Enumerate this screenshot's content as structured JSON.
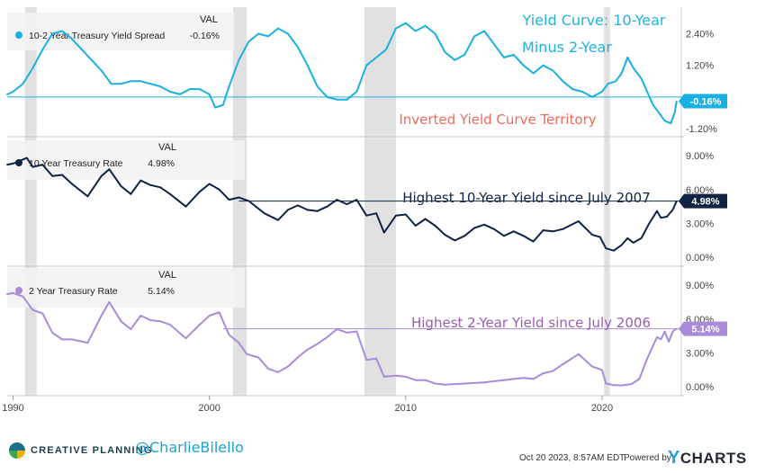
{
  "chart_data": {
    "type": "line",
    "x_range": [
      1989.7,
      2023.9
    ],
    "x_ticks": [
      "1990",
      "2000",
      "2010",
      "2020"
    ],
    "recessions": [
      [
        1990.6,
        1991.2
      ],
      [
        2001.2,
        2001.9
      ],
      [
        2007.9,
        2009.5
      ],
      [
        2020.1,
        2020.4
      ]
    ],
    "panels": [
      {
        "id": "spread",
        "legend_label": "10-2 Year Treasury Yield Spread",
        "legend_header": "VAL",
        "legend_value": "-0.16%",
        "color": "#1ab0e0",
        "ylim": [
          -1.3,
          3.2
        ],
        "y_ticks": [
          "2.40%",
          "1.20%",
          "0.00%",
          "-1.20%"
        ],
        "y_tick_values": [
          2.4,
          1.2,
          0.0,
          -1.2
        ],
        "last_value_badge": "-0.16%",
        "title_annotation": "Yield Curve: 10-Year",
        "title_annotation_2": "Minus 2-Year",
        "annotation": "Inverted Yield Curve Territory",
        "annotation_color": "#f06a5a",
        "reference_line": 0.0,
        "series": [
          {
            "x": 1989.7,
            "y": 0.1
          },
          {
            "x": 1990.0,
            "y": 0.2
          },
          {
            "x": 1990.5,
            "y": 0.5
          },
          {
            "x": 1991.0,
            "y": 1.1
          },
          {
            "x": 1991.5,
            "y": 1.8
          },
          {
            "x": 1992.0,
            "y": 2.4
          },
          {
            "x": 1992.5,
            "y": 2.5
          },
          {
            "x": 1993.0,
            "y": 2.2
          },
          {
            "x": 1993.5,
            "y": 1.8
          },
          {
            "x": 1994.0,
            "y": 1.4
          },
          {
            "x": 1994.5,
            "y": 1.0
          },
          {
            "x": 1995.0,
            "y": 0.5
          },
          {
            "x": 1995.5,
            "y": 0.5
          },
          {
            "x": 1996.0,
            "y": 0.6
          },
          {
            "x": 1996.5,
            "y": 0.6
          },
          {
            "x": 1997.0,
            "y": 0.5
          },
          {
            "x": 1997.5,
            "y": 0.4
          },
          {
            "x": 1998.0,
            "y": 0.2
          },
          {
            "x": 1998.5,
            "y": 0.1
          },
          {
            "x": 1999.0,
            "y": 0.3
          },
          {
            "x": 1999.5,
            "y": 0.3
          },
          {
            "x": 2000.0,
            "y": 0.1
          },
          {
            "x": 2000.3,
            "y": -0.4
          },
          {
            "x": 2000.7,
            "y": -0.3
          },
          {
            "x": 2001.0,
            "y": 0.4
          },
          {
            "x": 2001.5,
            "y": 1.4
          },
          {
            "x": 2002.0,
            "y": 2.1
          },
          {
            "x": 2002.5,
            "y": 2.4
          },
          {
            "x": 2003.0,
            "y": 2.3
          },
          {
            "x": 2003.5,
            "y": 2.6
          },
          {
            "x": 2004.0,
            "y": 2.4
          },
          {
            "x": 2004.5,
            "y": 1.9
          },
          {
            "x": 2005.0,
            "y": 1.2
          },
          {
            "x": 2005.5,
            "y": 0.4
          },
          {
            "x": 2006.0,
            "y": 0.0
          },
          {
            "x": 2006.5,
            "y": -0.1
          },
          {
            "x": 2007.0,
            "y": -0.1
          },
          {
            "x": 2007.5,
            "y": 0.2
          },
          {
            "x": 2008.0,
            "y": 1.2
          },
          {
            "x": 2008.5,
            "y": 1.5
          },
          {
            "x": 2009.0,
            "y": 1.8
          },
          {
            "x": 2009.5,
            "y": 2.6
          },
          {
            "x": 2010.0,
            "y": 2.8
          },
          {
            "x": 2010.5,
            "y": 2.5
          },
          {
            "x": 2011.0,
            "y": 2.7
          },
          {
            "x": 2011.5,
            "y": 2.4
          },
          {
            "x": 2012.0,
            "y": 1.7
          },
          {
            "x": 2012.5,
            "y": 1.4
          },
          {
            "x": 2013.0,
            "y": 1.6
          },
          {
            "x": 2013.5,
            "y": 2.3
          },
          {
            "x": 2014.0,
            "y": 2.5
          },
          {
            "x": 2014.5,
            "y": 2.0
          },
          {
            "x": 2015.0,
            "y": 1.5
          },
          {
            "x": 2015.5,
            "y": 1.6
          },
          {
            "x": 2016.0,
            "y": 1.2
          },
          {
            "x": 2016.5,
            "y": 0.9
          },
          {
            "x": 2017.0,
            "y": 1.2
          },
          {
            "x": 2017.5,
            "y": 1.0
          },
          {
            "x": 2018.0,
            "y": 0.6
          },
          {
            "x": 2018.5,
            "y": 0.3
          },
          {
            "x": 2019.0,
            "y": 0.2
          },
          {
            "x": 2019.5,
            "y": 0.0
          },
          {
            "x": 2020.0,
            "y": 0.2
          },
          {
            "x": 2020.3,
            "y": 0.5
          },
          {
            "x": 2020.7,
            "y": 0.6
          },
          {
            "x": 2021.0,
            "y": 0.9
          },
          {
            "x": 2021.3,
            "y": 1.5
          },
          {
            "x": 2021.6,
            "y": 1.1
          },
          {
            "x": 2022.0,
            "y": 0.7
          },
          {
            "x": 2022.3,
            "y": 0.2
          },
          {
            "x": 2022.6,
            "y": -0.3
          },
          {
            "x": 2022.9,
            "y": -0.6
          },
          {
            "x": 2023.2,
            "y": -0.9
          },
          {
            "x": 2023.5,
            "y": -1.0
          },
          {
            "x": 2023.7,
            "y": -0.6
          },
          {
            "x": 2023.8,
            "y": -0.16
          }
        ]
      },
      {
        "id": "ten_year",
        "legend_label": "10 Year Treasury Rate",
        "legend_header": "VAL",
        "legend_value": "4.98%",
        "color": "#0f2444",
        "ylim": [
          -0.3,
          10.2
        ],
        "y_ticks": [
          "9.00%",
          "6.00%",
          "3.00%",
          "0.00%"
        ],
        "y_tick_values": [
          9,
          6,
          3,
          0
        ],
        "last_value_badge": "4.98%",
        "annotation": "Highest 10-Year Yield since July 2007",
        "annotation_color": "#0f2444",
        "reference_line": 4.98,
        "reference_from": 2001.5,
        "series": [
          {
            "x": 1989.7,
            "y": 8.2
          },
          {
            "x": 1990.0,
            "y": 8.3
          },
          {
            "x": 1990.7,
            "y": 8.8
          },
          {
            "x": 1991.0,
            "y": 8.0
          },
          {
            "x": 1991.5,
            "y": 8.2
          },
          {
            "x": 1992.0,
            "y": 7.2
          },
          {
            "x": 1992.5,
            "y": 7.3
          },
          {
            "x": 1993.0,
            "y": 6.5
          },
          {
            "x": 1993.8,
            "y": 5.4
          },
          {
            "x": 1994.5,
            "y": 7.2
          },
          {
            "x": 1994.9,
            "y": 7.8
          },
          {
            "x": 1995.5,
            "y": 6.3
          },
          {
            "x": 1996.0,
            "y": 5.6
          },
          {
            "x": 1996.5,
            "y": 6.8
          },
          {
            "x": 1997.0,
            "y": 6.4
          },
          {
            "x": 1997.5,
            "y": 6.2
          },
          {
            "x": 1998.0,
            "y": 5.6
          },
          {
            "x": 1998.8,
            "y": 4.5
          },
          {
            "x": 1999.5,
            "y": 5.8
          },
          {
            "x": 2000.0,
            "y": 6.5
          },
          {
            "x": 2000.5,
            "y": 6.0
          },
          {
            "x": 2001.0,
            "y": 5.1
          },
          {
            "x": 2001.5,
            "y": 5.3
          },
          {
            "x": 2002.0,
            "y": 5.0
          },
          {
            "x": 2002.8,
            "y": 3.9
          },
          {
            "x": 2003.5,
            "y": 3.3
          },
          {
            "x": 2004.0,
            "y": 4.2
          },
          {
            "x": 2004.5,
            "y": 4.6
          },
          {
            "x": 2005.0,
            "y": 4.2
          },
          {
            "x": 2005.5,
            "y": 4.1
          },
          {
            "x": 2006.0,
            "y": 4.5
          },
          {
            "x": 2006.5,
            "y": 5.1
          },
          {
            "x": 2007.0,
            "y": 4.7
          },
          {
            "x": 2007.5,
            "y": 5.1
          },
          {
            "x": 2008.0,
            "y": 3.7
          },
          {
            "x": 2008.5,
            "y": 3.9
          },
          {
            "x": 2008.9,
            "y": 2.2
          },
          {
            "x": 2009.5,
            "y": 3.7
          },
          {
            "x": 2010.0,
            "y": 3.8
          },
          {
            "x": 2010.5,
            "y": 2.8
          },
          {
            "x": 2011.0,
            "y": 3.4
          },
          {
            "x": 2011.5,
            "y": 2.8
          },
          {
            "x": 2012.0,
            "y": 2.0
          },
          {
            "x": 2012.5,
            "y": 1.5
          },
          {
            "x": 2013.0,
            "y": 1.9
          },
          {
            "x": 2013.5,
            "y": 2.6
          },
          {
            "x": 2014.0,
            "y": 2.9
          },
          {
            "x": 2014.5,
            "y": 2.5
          },
          {
            "x": 2015.0,
            "y": 1.9
          },
          {
            "x": 2015.5,
            "y": 2.3
          },
          {
            "x": 2016.0,
            "y": 1.9
          },
          {
            "x": 2016.5,
            "y": 1.4
          },
          {
            "x": 2017.0,
            "y": 2.4
          },
          {
            "x": 2017.5,
            "y": 2.3
          },
          {
            "x": 2018.0,
            "y": 2.5
          },
          {
            "x": 2018.8,
            "y": 3.2
          },
          {
            "x": 2019.5,
            "y": 2.0
          },
          {
            "x": 2019.9,
            "y": 1.8
          },
          {
            "x": 2020.2,
            "y": 0.8
          },
          {
            "x": 2020.6,
            "y": 0.6
          },
          {
            "x": 2021.0,
            "y": 1.1
          },
          {
            "x": 2021.3,
            "y": 1.7
          },
          {
            "x": 2021.6,
            "y": 1.3
          },
          {
            "x": 2022.0,
            "y": 1.7
          },
          {
            "x": 2022.4,
            "y": 3.0
          },
          {
            "x": 2022.8,
            "y": 4.1
          },
          {
            "x": 2023.0,
            "y": 3.5
          },
          {
            "x": 2023.3,
            "y": 3.6
          },
          {
            "x": 2023.6,
            "y": 4.2
          },
          {
            "x": 2023.8,
            "y": 4.98
          }
        ]
      },
      {
        "id": "two_year",
        "legend_label": "2 Year Treasury Rate",
        "legend_header": "VAL",
        "legend_value": "5.14%",
        "color": "#a98bd9",
        "ylim": [
          -0.3,
          10.2
        ],
        "y_ticks": [
          "9.00%",
          "6.00%",
          "3.00%",
          "0.00%"
        ],
        "y_tick_values": [
          9,
          6,
          3,
          0
        ],
        "last_value_badge": "5.14%",
        "annotation": "Highest 2-Year Yield since July 2006",
        "annotation_color": "#9b5db0",
        "reference_line": 5.14,
        "reference_from": 2000.7,
        "series": [
          {
            "x": 1989.7,
            "y": 8.2
          },
          {
            "x": 1990.0,
            "y": 8.3
          },
          {
            "x": 1990.5,
            "y": 8.0
          },
          {
            "x": 1991.0,
            "y": 6.8
          },
          {
            "x": 1991.5,
            "y": 6.5
          },
          {
            "x": 1992.0,
            "y": 4.8
          },
          {
            "x": 1992.5,
            "y": 4.2
          },
          {
            "x": 1993.0,
            "y": 4.2
          },
          {
            "x": 1993.8,
            "y": 3.9
          },
          {
            "x": 1994.5,
            "y": 6.3
          },
          {
            "x": 1994.9,
            "y": 7.5
          },
          {
            "x": 1995.5,
            "y": 5.8
          },
          {
            "x": 1996.0,
            "y": 5.1
          },
          {
            "x": 1996.5,
            "y": 6.3
          },
          {
            "x": 1997.0,
            "y": 5.9
          },
          {
            "x": 1997.5,
            "y": 5.8
          },
          {
            "x": 1998.0,
            "y": 5.5
          },
          {
            "x": 1998.8,
            "y": 4.3
          },
          {
            "x": 1999.5,
            "y": 5.5
          },
          {
            "x": 2000.0,
            "y": 6.3
          },
          {
            "x": 2000.5,
            "y": 6.6
          },
          {
            "x": 2001.0,
            "y": 4.6
          },
          {
            "x": 2001.5,
            "y": 3.9
          },
          {
            "x": 2001.9,
            "y": 2.9
          },
          {
            "x": 2002.5,
            "y": 2.6
          },
          {
            "x": 2003.0,
            "y": 1.6
          },
          {
            "x": 2003.5,
            "y": 1.3
          },
          {
            "x": 2004.0,
            "y": 1.8
          },
          {
            "x": 2004.5,
            "y": 2.6
          },
          {
            "x": 2005.0,
            "y": 3.3
          },
          {
            "x": 2005.5,
            "y": 3.8
          },
          {
            "x": 2006.0,
            "y": 4.4
          },
          {
            "x": 2006.5,
            "y": 5.1
          },
          {
            "x": 2007.0,
            "y": 4.8
          },
          {
            "x": 2007.5,
            "y": 4.9
          },
          {
            "x": 2008.0,
            "y": 2.4
          },
          {
            "x": 2008.5,
            "y": 2.5
          },
          {
            "x": 2008.9,
            "y": 0.9
          },
          {
            "x": 2009.5,
            "y": 1.0
          },
          {
            "x": 2010.0,
            "y": 0.9
          },
          {
            "x": 2010.5,
            "y": 0.6
          },
          {
            "x": 2011.0,
            "y": 0.6
          },
          {
            "x": 2011.5,
            "y": 0.3
          },
          {
            "x": 2012.0,
            "y": 0.2
          },
          {
            "x": 2013.0,
            "y": 0.3
          },
          {
            "x": 2014.0,
            "y": 0.4
          },
          {
            "x": 2014.5,
            "y": 0.5
          },
          {
            "x": 2015.0,
            "y": 0.6
          },
          {
            "x": 2015.5,
            "y": 0.7
          },
          {
            "x": 2016.0,
            "y": 0.8
          },
          {
            "x": 2016.5,
            "y": 0.7
          },
          {
            "x": 2017.0,
            "y": 1.2
          },
          {
            "x": 2017.5,
            "y": 1.4
          },
          {
            "x": 2018.0,
            "y": 2.0
          },
          {
            "x": 2018.8,
            "y": 2.9
          },
          {
            "x": 2019.5,
            "y": 1.8
          },
          {
            "x": 2020.0,
            "y": 1.5
          },
          {
            "x": 2020.2,
            "y": 0.3
          },
          {
            "x": 2020.6,
            "y": 0.15
          },
          {
            "x": 2021.0,
            "y": 0.13
          },
          {
            "x": 2021.5,
            "y": 0.25
          },
          {
            "x": 2021.9,
            "y": 0.7
          },
          {
            "x": 2022.3,
            "y": 2.5
          },
          {
            "x": 2022.8,
            "y": 4.4
          },
          {
            "x": 2023.0,
            "y": 4.2
          },
          {
            "x": 2023.2,
            "y": 4.9
          },
          {
            "x": 2023.4,
            "y": 4.0
          },
          {
            "x": 2023.6,
            "y": 4.9
          },
          {
            "x": 2023.8,
            "y": 5.14
          }
        ]
      }
    ]
  },
  "footer": {
    "brand_name": "CREATIVE PLANNING",
    "handle": "@CharlieBilello",
    "timestamp": "Oct 20 2023, 8:57AM EDT.",
    "powered_by": "Powered by",
    "ycharts_y": "Y",
    "ycharts_rest": "CHARTS"
  }
}
